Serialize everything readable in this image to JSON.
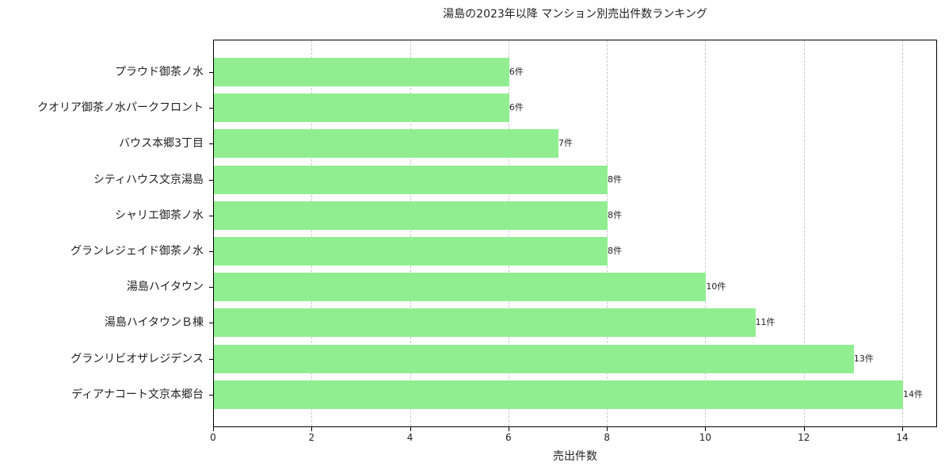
{
  "chart_data": {
    "type": "bar",
    "orientation": "horizontal",
    "title": "湯島の2023年以降 マンション別売出件数ランキング",
    "xlabel": "売出件数",
    "ylabel": "",
    "xlim": [
      0,
      14.7
    ],
    "xticks": [
      0,
      2,
      4,
      6,
      8,
      10,
      12,
      14
    ],
    "grid": "x, dashed",
    "bar_color": "#90ee90",
    "value_suffix": "件",
    "categories": [
      "プラウド御茶ノ水",
      "クオリア御茶ノ水パークフロント",
      "バウス本郷3丁目",
      "シティハウス文京湯島",
      "シャリエ御茶ノ水",
      "グランレジェイド御茶ノ水",
      "湯島ハイタウン",
      "湯島ハイタウンＢ棟",
      "グランリビオザレジデンス",
      "ディアナコート文京本郷台"
    ],
    "values": [
      6,
      6,
      7,
      8,
      8,
      8,
      10,
      11,
      13,
      14
    ],
    "value_labels": [
      "6件",
      "6件",
      "7件",
      "8件",
      "8件",
      "8件",
      "10件",
      "11件",
      "13件",
      "14件"
    ]
  }
}
